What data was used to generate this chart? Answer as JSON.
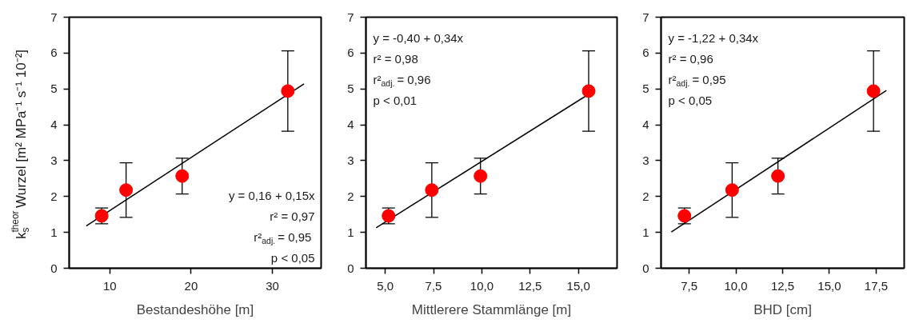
{
  "chart_data": [
    {
      "type": "scatter",
      "xlabel": "Bestandeshöhe [m]",
      "ylabel": "k$_{s}$$^{theor}$ Wurzel [m² MPa⁻¹ s⁻¹ 10⁻²]",
      "xlim": [
        5,
        36
      ],
      "xticks": [
        10,
        20,
        30
      ],
      "ylim": [
        0,
        7
      ],
      "yticks": [
        0,
        1,
        2,
        3,
        4,
        5,
        6,
        7
      ],
      "series": [
        {
          "color": "#ff0000",
          "marker": "circle",
          "x": [
            9,
            12,
            18.9,
            31.9
          ],
          "values": [
            1.46,
            2.18,
            2.57,
            4.94
          ],
          "errors": [
            0.22,
            0.76,
            0.5,
            1.12
          ]
        },
        {
          "type": "line",
          "color": "#000000",
          "x": [
            7.1,
            33.9
          ],
          "values": [
            1.18,
            5.14
          ]
        }
      ],
      "annotations": [
        "y = 0,16 + 0,15x",
        "r² = 0,97",
        "r²$_{adj.}$ = 0,95",
        "p < 0,05"
      ]
    },
    {
      "type": "scatter",
      "xlabel": "Mittlerere Stammlänge [m]",
      "xlim": [
        4,
        17
      ],
      "xticks": [
        {
          "value": 5,
          "label": "5,0"
        },
        {
          "value": 7.5,
          "label": "7,5"
        },
        {
          "value": 10,
          "label": "10,0"
        },
        {
          "value": 12.5,
          "label": "12,5"
        },
        {
          "value": 15,
          "label": "15,0"
        }
      ],
      "ylim": [
        0,
        7
      ],
      "yticks": [
        0,
        1,
        2,
        3,
        4,
        5,
        6,
        7
      ],
      "series": [
        {
          "color": "#ff0000",
          "marker": "circle",
          "x": [
            5.17,
            7.41,
            9.93,
            15.53
          ],
          "values": [
            1.46,
            2.18,
            2.57,
            4.94
          ],
          "errors": [
            0.22,
            0.76,
            0.5,
            1.12
          ]
        },
        {
          "type": "line",
          "color": "#000000",
          "x": [
            4.53,
            15.85
          ],
          "values": [
            1.13,
            4.96
          ]
        }
      ],
      "annotations": [
        "y = -0,40 + 0,34x",
        "r² = 0,98",
        "r²$_{adj.}$ = 0,96",
        "p < 0,01"
      ]
    },
    {
      "type": "scatter",
      "xlabel": "BHD [cm]",
      "xlim": [
        6,
        19
      ],
      "xticks": [
        {
          "value": 7.5,
          "label": "7,5"
        },
        {
          "value": 10,
          "label": "10,0"
        },
        {
          "value": 12.5,
          "label": "12,5"
        },
        {
          "value": 15,
          "label": "15,0"
        },
        {
          "value": 17.5,
          "label": "17,5"
        }
      ],
      "ylim": [
        0,
        7
      ],
      "yticks": [
        0,
        1,
        2,
        3,
        4,
        5,
        6,
        7
      ],
      "series": [
        {
          "color": "#ff0000",
          "marker": "circle",
          "x": [
            7.25,
            9.8,
            12.25,
            17.36
          ],
          "values": [
            1.46,
            2.18,
            2.57,
            4.94
          ],
          "errors": [
            0.22,
            0.76,
            0.5,
            1.12
          ]
        },
        {
          "type": "line",
          "color": "#000000",
          "x": [
            6.55,
            18.05
          ],
          "values": [
            1.01,
            4.96
          ]
        }
      ],
      "annotations": [
        "y = -1,22 + 0,34x",
        "r² = 0,96",
        "r²$_{adj.}$ = 0,95",
        "p < 0,05"
      ]
    }
  ]
}
